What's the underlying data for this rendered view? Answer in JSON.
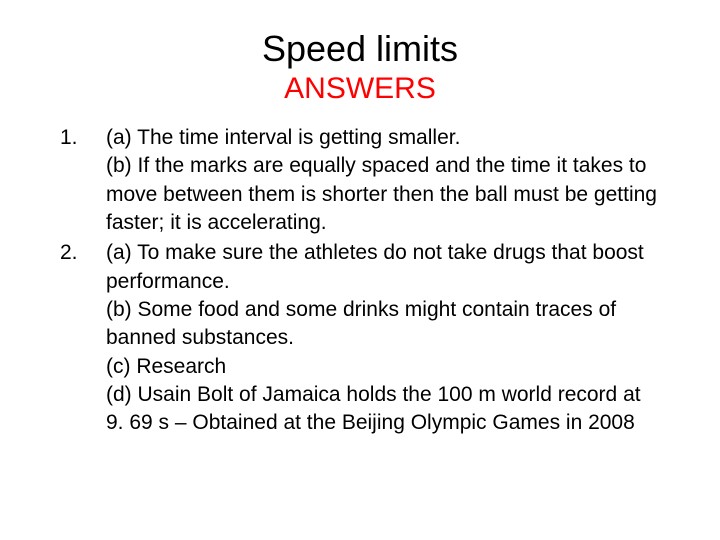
{
  "title": "Speed limits",
  "subtitle": "ANSWERS",
  "title_color": "#000000",
  "subtitle_color": "#ff0000",
  "background_color": "#ffffff",
  "body_color": "#000000",
  "title_fontsize": 36,
  "subtitle_fontsize": 30,
  "body_fontsize": 21,
  "items": [
    {
      "number": "1.",
      "parts": [
        "(a) The time interval is getting smaller.",
        "(b) If the marks are equally spaced and the time it takes to move between them is shorter then the ball must be getting faster; it is accelerating."
      ]
    },
    {
      "number": "2.",
      "parts": [
        "(a) To make sure the athletes do not take drugs that boost performance.",
        "(b) Some food and some drinks might contain traces of banned substances.",
        "(c) Research",
        "(d) Usain Bolt of Jamaica holds the 100 m world record at 9. 69 s – Obtained at the Beijing Olympic Games in 2008"
      ]
    }
  ]
}
